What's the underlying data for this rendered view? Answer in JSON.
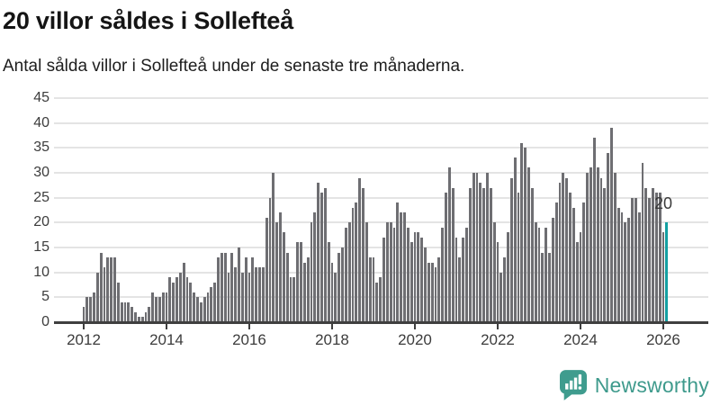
{
  "title": "20 villor såldes i Sollefteå",
  "subtitle": "Antal sålda villor i Sollefteå under de senaste tre månaderna.",
  "chart_data": {
    "type": "bar",
    "title": "20 villor såldes i Sollefteå",
    "subtitle": "Antal sålda villor i Sollefteå under de senaste tre månaderna.",
    "frequency": "monthly",
    "x_start": "2012-01",
    "x_end": "2026-02",
    "values": [
      3,
      5,
      5,
      6,
      10,
      14,
      11,
      13,
      13,
      13,
      8,
      4,
      4,
      4,
      3,
      2,
      1,
      1,
      2,
      3,
      6,
      5,
      5,
      6,
      6,
      9,
      8,
      9,
      10,
      12,
      9,
      8,
      6,
      5,
      4,
      5,
      6,
      7,
      8,
      13,
      14,
      14,
      10,
      14,
      11,
      15,
      10,
      13,
      10,
      13,
      11,
      11,
      11,
      21,
      25,
      30,
      20,
      22,
      18,
      14,
      9,
      9,
      16,
      16,
      12,
      13,
      20,
      22,
      28,
      26,
      27,
      16,
      12,
      10,
      14,
      15,
      19,
      20,
      23,
      24,
      29,
      27,
      20,
      13,
      13,
      8,
      9,
      17,
      20,
      20,
      19,
      24,
      22,
      22,
      19,
      16,
      18,
      18,
      17,
      15,
      12,
      12,
      11,
      13,
      19,
      26,
      31,
      27,
      17,
      13,
      17,
      19,
      27,
      30,
      30,
      28,
      27,
      30,
      27,
      20,
      16,
      10,
      13,
      18,
      29,
      33,
      26,
      36,
      35,
      31,
      27,
      20,
      19,
      14,
      19,
      14,
      21,
      24,
      28,
      30,
      29,
      26,
      23,
      16,
      18,
      24,
      30,
      31,
      37,
      31,
      29,
      27,
      34,
      39,
      30,
      23,
      22,
      20,
      21,
      25,
      25,
      22,
      32,
      27,
      25,
      27,
      26,
      26,
      18,
      20
    ],
    "y_ticks": [
      0,
      5,
      10,
      15,
      20,
      25,
      30,
      35,
      40,
      45
    ],
    "ylim": [
      0,
      45
    ],
    "x_tick_years": [
      "2012",
      "2014",
      "2016",
      "2018",
      "2020",
      "2022",
      "2024",
      "2026"
    ],
    "grid": "horizontal",
    "legend": "none",
    "bar_color": "#6e6e72",
    "highlight_color": "#14a0a2",
    "highlight_index": 169,
    "last_value_label": "20"
  },
  "footer": {
    "brand": "Newsworthy",
    "brand_color": "#3e9a8c",
    "logo_icon": "bar-chart-speech-bubble-icon"
  }
}
